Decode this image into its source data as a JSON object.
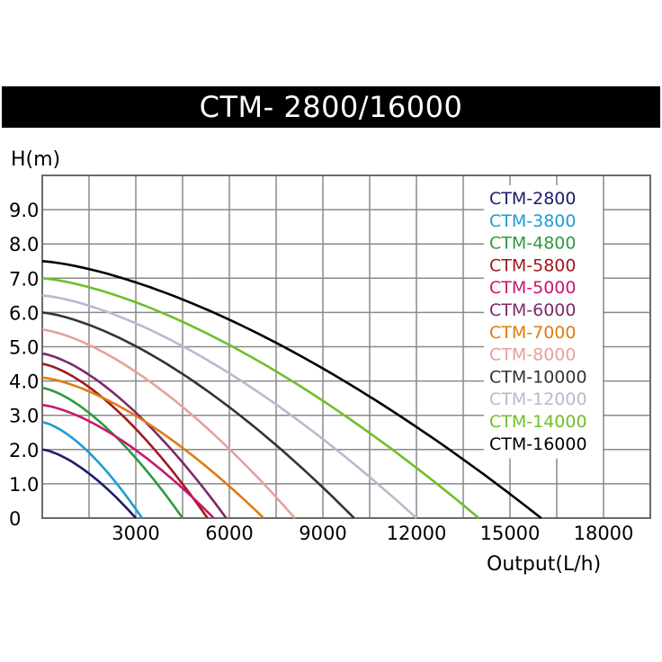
{
  "chart_data": {
    "type": "line",
    "title": "CTM- 2800/16000",
    "ylabel": "H(m)",
    "xlabel": "Output(L/h)",
    "xlim": [
      0,
      19500
    ],
    "ylim": [
      0,
      10.0
    ],
    "x_ticks": [
      {
        "value": 3000,
        "label": "3000"
      },
      {
        "value": 6000,
        "label": "6000"
      },
      {
        "value": 9000,
        "label": "9000"
      },
      {
        "value": 12000,
        "label": "12000"
      },
      {
        "value": 15000,
        "label": "15000"
      },
      {
        "value": 18000,
        "label": "18000"
      }
    ],
    "y_ticks": [
      {
        "value": 0,
        "label": "0"
      },
      {
        "value": 1.0,
        "label": "1.0"
      },
      {
        "value": 2.0,
        "label": "2.0"
      },
      {
        "value": 3.0,
        "label": "3.0"
      },
      {
        "value": 4.0,
        "label": "4.0"
      },
      {
        "value": 5.0,
        "label": "5.0"
      },
      {
        "value": 6.0,
        "label": "6.0"
      },
      {
        "value": 7.0,
        "label": "7.0"
      },
      {
        "value": 8.0,
        "label": "8.0"
      },
      {
        "value": 9.0,
        "label": "9.0"
      }
    ],
    "grid": true,
    "legend_position": "top-right",
    "series": [
      {
        "name": "CTM-2800",
        "color": "#1c1c6b",
        "max_head": 2.0,
        "max_flow": 3000
      },
      {
        "name": "CTM-3800",
        "color": "#1e9bd7",
        "max_head": 2.8,
        "max_flow": 3200
      },
      {
        "name": "CTM-4800",
        "color": "#2e9a3f",
        "max_head": 3.8,
        "max_flow": 4500
      },
      {
        "name": "CTM-5800",
        "color": "#a0191e",
        "max_head": 4.5,
        "max_flow": 5300
      },
      {
        "name": "CTM-5000",
        "color": "#c8186b",
        "max_head": 3.3,
        "max_flow": 5500
      },
      {
        "name": "CTM-6000",
        "color": "#7a2a6b",
        "max_head": 4.8,
        "max_flow": 5900
      },
      {
        "name": "CTM-7000",
        "color": "#e07b12",
        "max_head": 4.1,
        "max_flow": 7100
      },
      {
        "name": "CTM-8000",
        "color": "#e8a19a",
        "max_head": 5.5,
        "max_flow": 8100
      },
      {
        "name": "CTM-10000",
        "color": "#333333",
        "max_head": 6.0,
        "max_flow": 10000
      },
      {
        "name": "CTM-12000",
        "color": "#b9b9cf",
        "max_head": 6.5,
        "max_flow": 12000
      },
      {
        "name": "CTM-14000",
        "color": "#6fbf2a",
        "max_head": 7.0,
        "max_flow": 14000
      },
      {
        "name": "CTM-16000",
        "color": "#000000",
        "max_head": 7.5,
        "max_flow": 16000
      }
    ]
  }
}
